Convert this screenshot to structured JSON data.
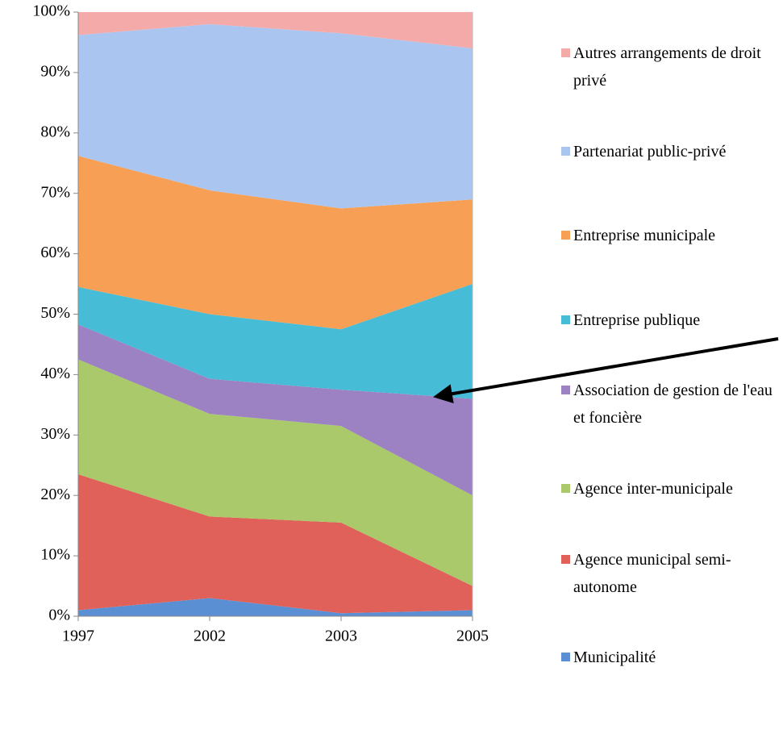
{
  "chart_data": {
    "type": "stacked-area",
    "categories": [
      "1997",
      "2002",
      "2003",
      "2005"
    ],
    "series": [
      {
        "name": "Municipalité",
        "color": "#5b8fd4",
        "values": [
          1,
          3,
          0.5,
          1
        ]
      },
      {
        "name": "Agence municipal semi-autonome",
        "color": "#e0605a",
        "values": [
          22.5,
          13.5,
          15,
          4
        ]
      },
      {
        "name": "Agence inter-municipale",
        "color": "#a9c96a",
        "values": [
          19,
          17,
          16,
          15
        ]
      },
      {
        "name": "Association de gestion de l'eau et foncière",
        "color": "#9c82c2",
        "values": [
          5.8,
          5.8,
          6,
          16
        ]
      },
      {
        "name": "Entreprise publique",
        "color": "#46bcd6",
        "values": [
          6.2,
          10.7,
          10,
          19
        ]
      },
      {
        "name": "Entreprise municipale",
        "color": "#f7a055",
        "values": [
          21.7,
          20.5,
          20,
          14
        ]
      },
      {
        "name": "Partenariat public-privé",
        "color": "#aac6f0",
        "values": [
          20,
          27.5,
          29,
          25
        ]
      },
      {
        "name": "Autres arrangements de droit privé",
        "color": "#f4aaa8",
        "values": [
          3.8,
          2,
          3.5,
          6
        ]
      }
    ],
    "ylim": [
      0,
      100
    ],
    "yticks": [
      {
        "value": 0,
        "label": "0%"
      },
      {
        "value": 10,
        "label": "10%"
      },
      {
        "value": 20,
        "label": "20%"
      },
      {
        "value": 30,
        "label": "30%"
      },
      {
        "value": 40,
        "label": "40%"
      },
      {
        "value": 50,
        "label": "50%"
      },
      {
        "value": 60,
        "label": "60%"
      },
      {
        "value": 70,
        "label": "70%"
      },
      {
        "value": 80,
        "label": "80%"
      },
      {
        "value": 90,
        "label": "90%"
      },
      {
        "value": 100,
        "label": "100%"
      }
    ]
  }
}
